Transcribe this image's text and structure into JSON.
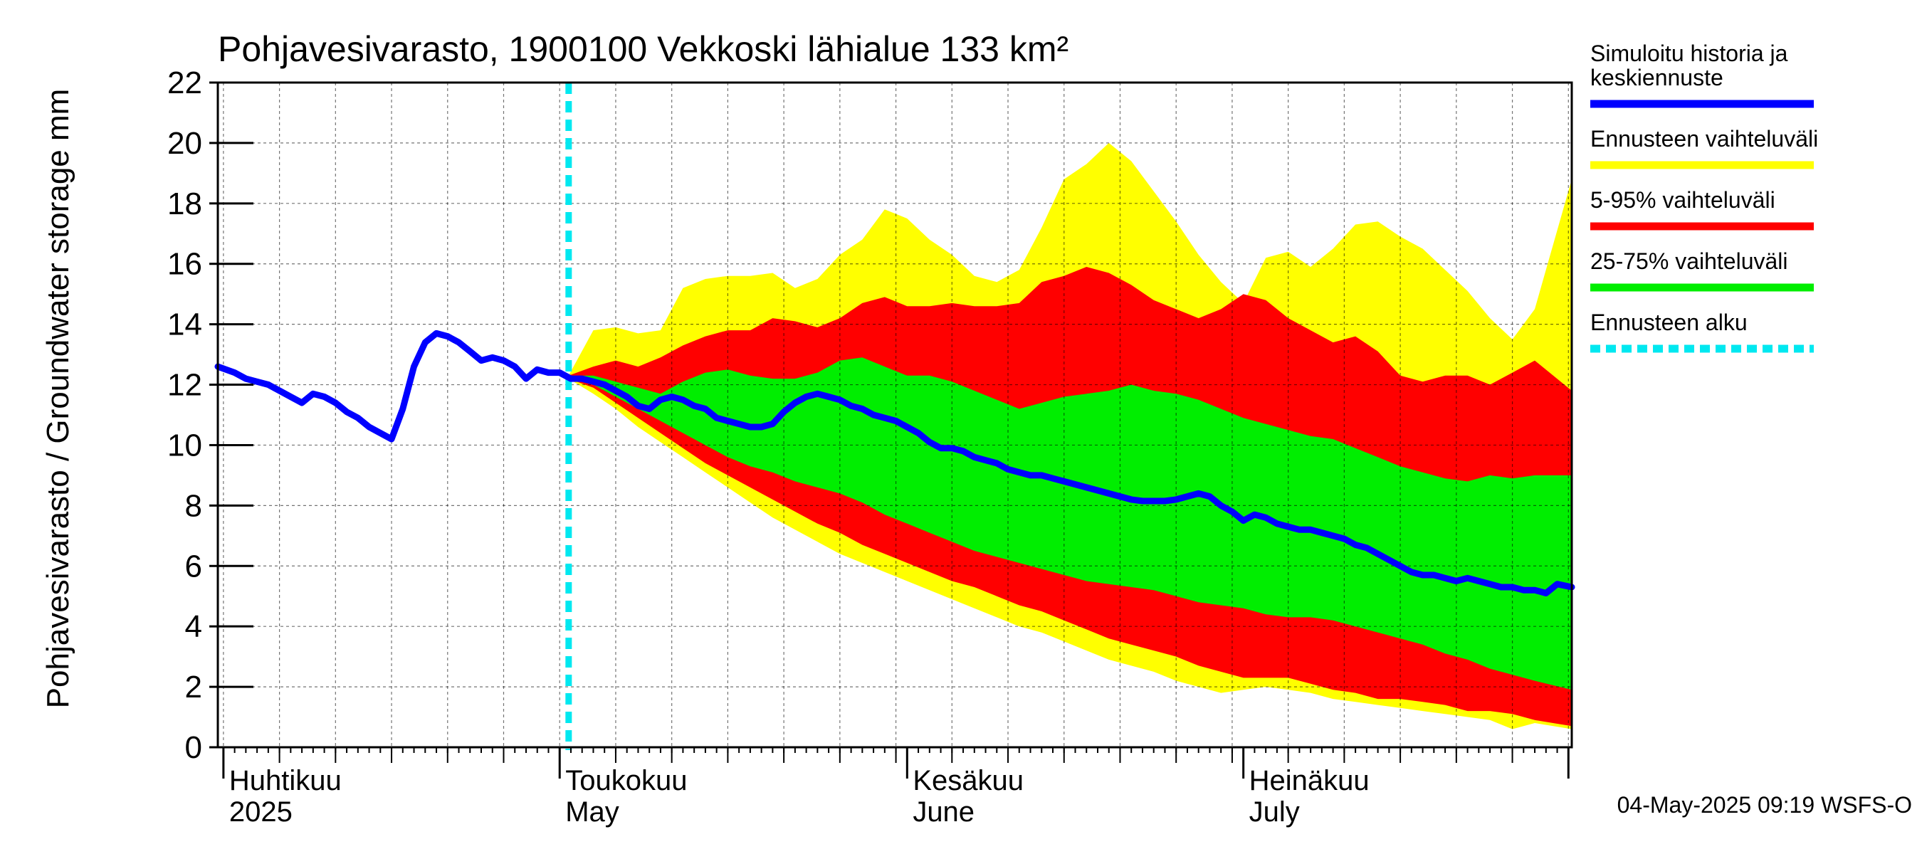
{
  "chart_data": {
    "type": "area",
    "title": "Pohjavesivarasto, 1900100 Vekkoski lähialue 133 km²",
    "ylabel": "Pohjavesivarasto / Groundwater storage   mm",
    "xlabel": "",
    "ylim": [
      0,
      22
    ],
    "yticks": [
      0,
      2,
      4,
      6,
      8,
      10,
      12,
      14,
      16,
      18,
      20,
      22
    ],
    "ytick_labels": [
      "0",
      "2",
      "4",
      "6",
      "8",
      "10",
      "12",
      "14",
      "16",
      "18",
      "20",
      "22"
    ],
    "x_unit": "day-of-year 2025",
    "xlim": [
      90.5,
      211.3
    ],
    "grid": true,
    "month_labels": [
      {
        "fi": "Huhtikuu",
        "en": "2025",
        "start_day": 91
      },
      {
        "fi": "Toukokuu",
        "en": "May",
        "start_day": 121
      },
      {
        "fi": "Kesäkuu",
        "en": "June",
        "start_day": 152
      },
      {
        "fi": "Heinäkuu",
        "en": "July",
        "start_day": 182
      }
    ],
    "forecast_start_day": 121.8,
    "series": [
      {
        "name": "Ennusteen vaihteluväli",
        "kind": "band",
        "color": "#ffff00",
        "x": [
          121.8,
          124,
          126,
          128,
          130,
          132,
          134,
          136,
          138,
          140,
          142,
          144,
          146,
          148,
          150,
          152,
          154,
          156,
          158,
          160,
          162,
          164,
          166,
          168,
          170,
          172,
          174,
          176,
          178,
          180,
          182,
          184,
          186,
          188,
          190,
          192,
          194,
          196,
          198,
          200,
          202,
          204,
          206,
          208,
          211.3
        ],
        "upper": [
          12.3,
          13.8,
          13.9,
          13.7,
          13.8,
          15.2,
          15.5,
          15.6,
          15.6,
          15.7,
          15.2,
          15.5,
          16.3,
          16.8,
          17.8,
          17.5,
          16.8,
          16.3,
          15.6,
          15.4,
          15.8,
          17.2,
          18.8,
          19.3,
          20.0,
          19.4,
          18.4,
          17.4,
          16.3,
          15.4,
          14.7,
          16.2,
          16.4,
          15.9,
          16.5,
          17.3,
          17.4,
          16.9,
          16.5,
          15.8,
          15.1,
          14.2,
          13.5,
          14.5,
          18.8
        ],
        "lower": [
          12.2,
          11.7,
          11.2,
          10.6,
          10.1,
          9.6,
          9.1,
          8.6,
          8.1,
          7.6,
          7.2,
          6.8,
          6.4,
          6.1,
          5.8,
          5.5,
          5.2,
          4.9,
          4.6,
          4.3,
          4.0,
          3.8,
          3.5,
          3.2,
          2.9,
          2.7,
          2.5,
          2.2,
          2.0,
          1.8,
          1.9,
          2.0,
          1.9,
          1.8,
          1.6,
          1.5,
          1.4,
          1.3,
          1.2,
          1.1,
          1.0,
          0.9,
          0.6,
          0.8,
          0.6
        ]
      },
      {
        "name": "5-95% vaihteluväli",
        "kind": "band",
        "color": "#ff0000",
        "x": [
          121.8,
          124,
          126,
          128,
          130,
          132,
          134,
          136,
          138,
          140,
          142,
          144,
          146,
          148,
          150,
          152,
          154,
          156,
          158,
          160,
          162,
          164,
          166,
          168,
          170,
          172,
          174,
          176,
          178,
          180,
          182,
          184,
          186,
          188,
          190,
          192,
          194,
          196,
          198,
          200,
          202,
          204,
          206,
          208,
          211.3
        ],
        "upper": [
          12.3,
          12.6,
          12.8,
          12.6,
          12.9,
          13.3,
          13.6,
          13.8,
          13.8,
          14.2,
          14.1,
          13.9,
          14.2,
          14.7,
          14.9,
          14.6,
          14.6,
          14.7,
          14.6,
          14.6,
          14.7,
          15.4,
          15.6,
          15.9,
          15.7,
          15.3,
          14.8,
          14.5,
          14.2,
          14.5,
          15.0,
          14.8,
          14.2,
          13.8,
          13.4,
          13.6,
          13.1,
          12.3,
          12.1,
          12.3,
          12.3,
          12.0,
          12.4,
          12.8,
          11.8
        ],
        "lower": [
          12.2,
          11.9,
          11.4,
          10.9,
          10.4,
          9.9,
          9.4,
          9.0,
          8.6,
          8.2,
          7.8,
          7.4,
          7.1,
          6.7,
          6.4,
          6.1,
          5.8,
          5.5,
          5.3,
          5.0,
          4.7,
          4.5,
          4.2,
          3.9,
          3.6,
          3.4,
          3.2,
          3.0,
          2.7,
          2.5,
          2.3,
          2.3,
          2.3,
          2.1,
          1.9,
          1.8,
          1.6,
          1.6,
          1.5,
          1.4,
          1.2,
          1.2,
          1.1,
          0.9,
          0.7
        ]
      },
      {
        "name": "25-75% vaihteluväli",
        "kind": "band",
        "color": "#00ee00",
        "x": [
          121.8,
          124,
          126,
          128,
          130,
          132,
          134,
          136,
          138,
          140,
          142,
          144,
          146,
          148,
          150,
          152,
          154,
          156,
          158,
          160,
          162,
          164,
          166,
          168,
          170,
          172,
          174,
          176,
          178,
          180,
          182,
          184,
          186,
          188,
          190,
          192,
          194,
          196,
          198,
          200,
          202,
          204,
          206,
          208,
          211.3
        ],
        "upper": [
          12.3,
          12.3,
          12.1,
          11.9,
          11.7,
          12.1,
          12.4,
          12.5,
          12.3,
          12.2,
          12.2,
          12.4,
          12.8,
          12.9,
          12.6,
          12.3,
          12.3,
          12.1,
          11.8,
          11.5,
          11.2,
          11.4,
          11.6,
          11.7,
          11.8,
          12.0,
          11.8,
          11.7,
          11.5,
          11.2,
          10.9,
          10.7,
          10.5,
          10.3,
          10.2,
          9.9,
          9.6,
          9.3,
          9.1,
          8.9,
          8.8,
          9.0,
          8.9,
          9.0,
          9.0
        ],
        "lower": [
          12.2,
          12.0,
          11.6,
          11.2,
          10.8,
          10.4,
          10.0,
          9.6,
          9.3,
          9.1,
          8.8,
          8.6,
          8.4,
          8.1,
          7.7,
          7.4,
          7.1,
          6.8,
          6.5,
          6.3,
          6.1,
          5.9,
          5.7,
          5.5,
          5.4,
          5.3,
          5.2,
          5.0,
          4.8,
          4.7,
          4.6,
          4.4,
          4.3,
          4.3,
          4.2,
          4.0,
          3.8,
          3.6,
          3.4,
          3.1,
          2.9,
          2.6,
          2.4,
          2.2,
          1.9
        ]
      },
      {
        "name": "Simuloitu historia ja keskiennuste",
        "kind": "line",
        "color": "#0000ff",
        "x": [
          90.5,
          92,
          93,
          94,
          95,
          96,
          97,
          98,
          99,
          100,
          101,
          102,
          103,
          104,
          105,
          106,
          107,
          108,
          109,
          110,
          111,
          112,
          113,
          114,
          115,
          116,
          117,
          118,
          119,
          120,
          121,
          122,
          123,
          124,
          125,
          126,
          127,
          128,
          129,
          130,
          131,
          132,
          133,
          134,
          135,
          136,
          137,
          138,
          139,
          140,
          141,
          142,
          143,
          144,
          145,
          146,
          147,
          148,
          149,
          150,
          151,
          152,
          153,
          154,
          155,
          156,
          157,
          158,
          159,
          160,
          161,
          162,
          163,
          164,
          165,
          166,
          167,
          168,
          169,
          170,
          171,
          172,
          173,
          174,
          175,
          176,
          177,
          178,
          179,
          180,
          181,
          182,
          183,
          184,
          185,
          186,
          187,
          188,
          189,
          190,
          191,
          192,
          193,
          194,
          195,
          196,
          197,
          198,
          199,
          200,
          201,
          202,
          203,
          204,
          205,
          206,
          207,
          208,
          209,
          210,
          211.3
        ],
        "y": [
          12.6,
          12.4,
          12.2,
          12.1,
          12.0,
          11.8,
          11.6,
          11.4,
          11.7,
          11.6,
          11.4,
          11.1,
          10.9,
          10.6,
          10.4,
          10.2,
          11.2,
          12.6,
          13.4,
          13.7,
          13.6,
          13.4,
          13.1,
          12.8,
          12.9,
          12.8,
          12.6,
          12.2,
          12.5,
          12.4,
          12.4,
          12.2,
          12.2,
          12.1,
          12.0,
          11.8,
          11.6,
          11.3,
          11.2,
          11.5,
          11.6,
          11.5,
          11.3,
          11.2,
          10.9,
          10.8,
          10.7,
          10.6,
          10.6,
          10.7,
          11.1,
          11.4,
          11.6,
          11.7,
          11.6,
          11.5,
          11.3,
          11.2,
          11.0,
          10.9,
          10.8,
          10.6,
          10.4,
          10.1,
          9.9,
          9.9,
          9.8,
          9.6,
          9.5,
          9.4,
          9.2,
          9.1,
          9.0,
          9.0,
          8.9,
          8.8,
          8.7,
          8.6,
          8.5,
          8.4,
          8.3,
          8.2,
          8.15,
          8.15,
          8.15,
          8.2,
          8.3,
          8.4,
          8.3,
          8.0,
          7.8,
          7.5,
          7.7,
          7.6,
          7.4,
          7.3,
          7.2,
          7.2,
          7.1,
          7.0,
          6.9,
          6.7,
          6.6,
          6.4,
          6.2,
          6.0,
          5.8,
          5.7,
          5.7,
          5.6,
          5.5,
          5.6,
          5.5,
          5.4,
          5.3,
          5.3,
          5.2,
          5.2,
          5.1,
          5.4,
          5.3
        ]
      },
      {
        "name": "Ennusteen alku",
        "kind": "vline",
        "color": "#00e8f0",
        "x": 121.8
      }
    ],
    "legend_position": "right"
  },
  "legend": {
    "items": [
      {
        "label_lines": [
          "Simuloitu historia ja",
          "keskiennuste"
        ],
        "color": "#0000ff",
        "style": "solid"
      },
      {
        "label_lines": [
          "Ennusteen vaihteluväli"
        ],
        "color": "#ffff00",
        "style": "solid"
      },
      {
        "label_lines": [
          "5-95% vaihteluväli"
        ],
        "color": "#ff0000",
        "style": "solid"
      },
      {
        "label_lines": [
          "25-75% vaihteluväli"
        ],
        "color": "#00ee00",
        "style": "solid"
      },
      {
        "label_lines": [
          "Ennusteen alku"
        ],
        "color": "#00e8f0",
        "style": "dashed"
      }
    ]
  },
  "footer": {
    "timestamp": "04-May-2025 09:19 WSFS-O"
  }
}
